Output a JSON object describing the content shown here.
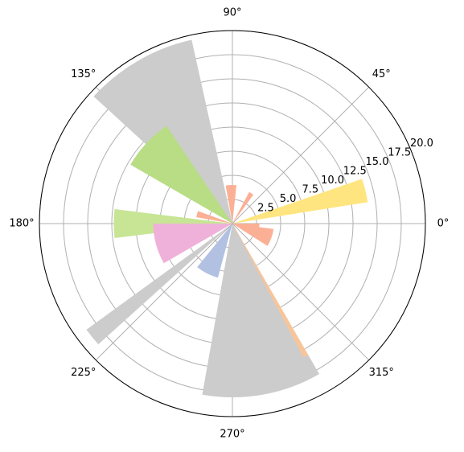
{
  "chart_data": {
    "type": "polar-bar",
    "theta": [
      14,
      120,
      137,
      180,
      195,
      243,
      219,
      280,
      299,
      340,
      355,
      92,
      58,
      165
    ],
    "widths": [
      10,
      35,
      26,
      14,
      30,
      24,
      6,
      40,
      2,
      25,
      10,
      16,
      8,
      10
    ],
    "values": [
      14.2,
      19.5,
      12.2,
      12.3,
      8.2,
      5.8,
      18.7,
      18,
      15.7,
      4.3,
      2.8,
      4,
      3.7,
      3.8
    ],
    "colors": [
      "#ffe57f",
      "#cccccc",
      "#b8dd85",
      "#c7e595",
      "#efb1d9",
      "#b2c1e1",
      "#cccccc",
      "#cccccc",
      "#f8c59a",
      "#fbb096",
      "#fbb096",
      "#fbb096",
      "#fbb096",
      "#fbb096"
    ],
    "rlim": [
      0,
      20
    ],
    "rticks": [
      2.5,
      {
        "value": 5,
        "label": "5.0"
      },
      7.5,
      {
        "value": 10,
        "label": "10.0"
      },
      12.5,
      {
        "value": 15,
        "label": "15.0"
      },
      17.5,
      {
        "value": 20,
        "label": "20.0"
      }
    ],
    "thetaticks": [
      {
        "value": 0,
        "label": "0°"
      },
      {
        "value": 45,
        "label": "45°"
      },
      {
        "value": 90,
        "label": "90°"
      },
      {
        "value": 135,
        "label": "135°"
      },
      {
        "value": 180,
        "label": "180°"
      },
      {
        "value": 225,
        "label": "225°"
      },
      {
        "value": 270,
        "label": "270°"
      },
      {
        "value": 315,
        "label": "315°"
      }
    ],
    "grid": true
  }
}
